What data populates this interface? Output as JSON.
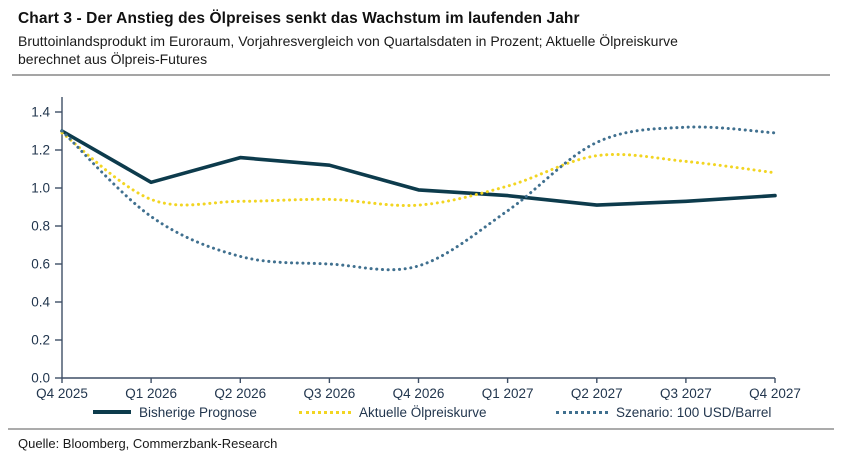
{
  "header": {
    "title": "Chart 3 - Der Anstieg des Ölpreises senkt das Wachstum im laufenden Jahr",
    "subtitle": "Bruttoinlandsprodukt im Euroraum, Vorjahresvergleich von Quartalsdaten in Prozent; Aktuelle Ölpreiskurve berechnet aus Ölpreis-Futures"
  },
  "chart_data": {
    "type": "line",
    "title": "",
    "xlabel": "",
    "ylabel": "",
    "categories": [
      "Q4 2025",
      "Q1 2026",
      "Q2 2026",
      "Q3 2026",
      "Q4 2026",
      "Q1 2027",
      "Q2 2027",
      "Q3 2027",
      "Q4 2027"
    ],
    "series": [
      {
        "name": "Bisherige Prognose",
        "style": "solid",
        "color": "#0d3b4c",
        "values": [
          1.3,
          1.03,
          1.16,
          1.12,
          0.99,
          0.96,
          0.91,
          0.93,
          0.96
        ]
      },
      {
        "name": "Aktuelle Ölpreiskurve",
        "style": "dotted",
        "color": "#f2d522",
        "values": [
          1.29,
          0.94,
          0.93,
          0.94,
          0.91,
          1.01,
          1.17,
          1.14,
          1.08
        ]
      },
      {
        "name": "Szenario: 100 USD/Barrel",
        "style": "dotted",
        "color": "#40708f",
        "values": [
          1.3,
          0.85,
          0.64,
          0.6,
          0.59,
          0.88,
          1.24,
          1.32,
          1.29
        ]
      }
    ],
    "ylim": [
      0.0,
      1.4
    ],
    "ytick_step": 0.2,
    "ytick_labels": [
      "0.0",
      "0.2",
      "0.4",
      "0.6",
      "0.8",
      "1.0",
      "1.2",
      "1.4"
    ],
    "grid": false,
    "legend_position": "bottom"
  },
  "colors": {
    "axis": "#3e4f66",
    "tick_text": "#22364e",
    "divider": "#a5a5a5"
  },
  "source": "Quelle: Bloomberg, Commerzbank-Research"
}
